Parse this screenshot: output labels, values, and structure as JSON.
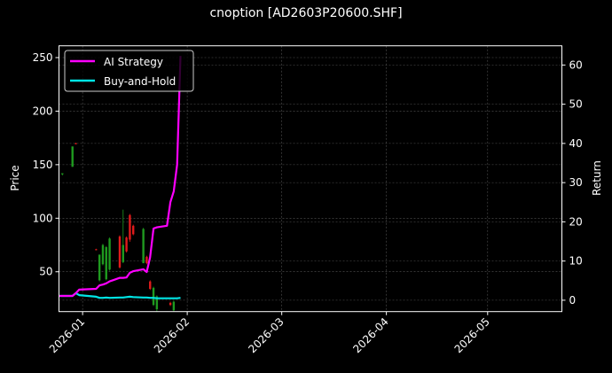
{
  "chart_data": {
    "type": "candlestick+line",
    "title": "cnoption [AD2603P20600.SHF]",
    "ylabel_left": "Price",
    "ylabel_right": "Return",
    "xlabel": "",
    "xlim": [
      "2025-12-25",
      "2026-05-23"
    ],
    "ylim_left": [
      12.8,
      261
    ],
    "ylim_right": [
      -2.9,
      64.9
    ],
    "grid": true,
    "legend_position": "top-left",
    "x_ticks": [
      "2026-01",
      "2026-02",
      "2026-03",
      "2026-04",
      "2026-05"
    ],
    "x_tick_dates": [
      "2026-01-01",
      "2026-02-01",
      "2026-03-01",
      "2026-04-01",
      "2026-05-01"
    ],
    "y_ticks_left": [
      50,
      100,
      150,
      200,
      250
    ],
    "y_ticks_right": [
      0,
      10,
      20,
      30,
      40,
      50,
      60
    ],
    "colors": {
      "up": "#1f9a1f",
      "down": "#e01b1b",
      "ai_strategy": "#ff00ff",
      "buy_and_hold": "#00e5e5",
      "grid": "#555555"
    },
    "candles": [
      {
        "date": "2025-12-26",
        "open": 141,
        "high": 142,
        "low": 140,
        "close": 142
      },
      {
        "date": "2025-12-29",
        "open": 148,
        "high": 167,
        "low": 148,
        "close": 167
      },
      {
        "date": "2025-12-30",
        "open": 170,
        "high": 170.5,
        "low": 169,
        "close": 169.5
      },
      {
        "date": "2026-01-05",
        "open": 71,
        "high": 71.5,
        "low": 70,
        "close": 70.5
      },
      {
        "date": "2026-01-06",
        "open": 42,
        "high": 66,
        "low": 41,
        "close": 66
      },
      {
        "date": "2026-01-07",
        "open": 57,
        "high": 76,
        "low": 56,
        "close": 75
      },
      {
        "date": "2026-01-08",
        "open": 43,
        "high": 74,
        "low": 42,
        "close": 73
      },
      {
        "date": "2026-01-09",
        "open": 52,
        "high": 82,
        "low": 51,
        "close": 81
      },
      {
        "date": "2026-01-12",
        "open": 83,
        "high": 84,
        "low": 53,
        "close": 54
      },
      {
        "date": "2026-01-13",
        "open": 59,
        "high": 108,
        "low": 58,
        "close": 75
      },
      {
        "date": "2026-01-14",
        "open": 82,
        "high": 83,
        "low": 68,
        "close": 69
      },
      {
        "date": "2026-01-15",
        "open": 103,
        "high": 104,
        "low": 78,
        "close": 80
      },
      {
        "date": "2026-01-16",
        "open": 93,
        "high": 94,
        "low": 84,
        "close": 85
      },
      {
        "date": "2026-01-19",
        "open": 58,
        "high": 91,
        "low": 58,
        "close": 90
      },
      {
        "date": "2026-01-20",
        "open": 64,
        "high": 65,
        "low": 57,
        "close": 58
      },
      {
        "date": "2026-01-21",
        "open": 41,
        "high": 42,
        "low": 33,
        "close": 34
      },
      {
        "date": "2026-01-22",
        "open": 19,
        "high": 36,
        "low": 18,
        "close": 35
      },
      {
        "date": "2026-01-23",
        "open": 15,
        "high": 28,
        "low": 13,
        "close": 27
      },
      {
        "date": "2026-01-27",
        "open": 21,
        "high": 22,
        "low": 18,
        "close": 19
      },
      {
        "date": "2026-01-28",
        "open": 14,
        "high": 23,
        "low": 13,
        "close": 22
      }
    ],
    "series": [
      {
        "name": "AI Strategy",
        "dates": [
          "2025-12-25",
          "2025-12-29",
          "2025-12-30",
          "2025-12-31",
          "2026-01-05",
          "2026-01-06",
          "2026-01-07",
          "2026-01-08",
          "2026-01-09",
          "2026-01-12",
          "2026-01-13",
          "2026-01-14",
          "2026-01-15",
          "2026-01-16",
          "2026-01-19",
          "2026-01-20",
          "2026-01-21",
          "2026-01-22",
          "2026-01-23",
          "2026-01-26",
          "2026-01-27",
          "2026-01-28",
          "2026-01-29",
          "2026-01-30"
        ],
        "values": [
          1.1,
          1.1,
          1.8,
          2.7,
          2.9,
          3.8,
          4.0,
          4.3,
          4.8,
          5.7,
          5.7,
          5.8,
          7.0,
          7.4,
          7.9,
          7.2,
          10.9,
          18.3,
          18.6,
          19.0,
          25.0,
          27.8,
          34.6,
          62.3
        ]
      },
      {
        "name": "Buy-and-Hold",
        "dates": [
          "2025-12-25",
          "2025-12-29",
          "2025-12-30",
          "2025-12-31",
          "2026-01-05",
          "2026-01-06",
          "2026-01-07",
          "2026-01-08",
          "2026-01-09",
          "2026-01-12",
          "2026-01-13",
          "2026-01-14",
          "2026-01-15",
          "2026-01-16",
          "2026-01-19",
          "2026-01-20",
          "2026-01-21",
          "2026-01-22",
          "2026-01-23",
          "2026-01-26",
          "2026-01-27",
          "2026-01-28",
          "2026-01-29",
          "2026-01-30"
        ],
        "values": [
          1.1,
          1.1,
          1.8,
          1.3,
          0.9,
          0.6,
          0.6,
          0.7,
          0.6,
          0.7,
          0.7,
          0.8,
          0.9,
          0.8,
          0.7,
          0.7,
          0.6,
          0.6,
          0.5,
          0.5,
          0.5,
          0.5,
          0.5,
          0.6
        ]
      }
    ]
  }
}
